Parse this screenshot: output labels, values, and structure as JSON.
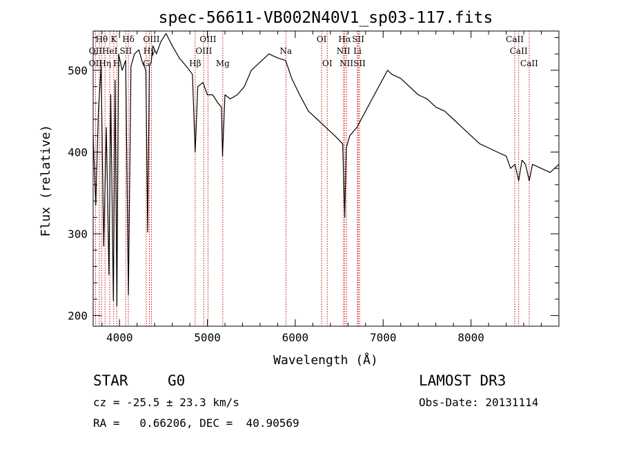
{
  "chart_data": {
    "type": "line",
    "title": "spec-56611-VB002N40V1_sp03-117.fits",
    "xlabel": "Wavelength (Å)",
    "ylabel": "Flux (relative)",
    "xlim": [
      3700,
      9000
    ],
    "ylim": [
      187,
      548
    ],
    "x_ticks": [
      4000,
      5000,
      6000,
      7000,
      8000
    ],
    "y_ticks": [
      200,
      300,
      400,
      500
    ],
    "series": [
      {
        "name": "spectrum",
        "x": [
          3700,
          3730,
          3760,
          3790,
          3820,
          3850,
          3880,
          3900,
          3930,
          3950,
          3970,
          3990,
          4030,
          4070,
          4101,
          4130,
          4170,
          4220,
          4260,
          4300,
          4320,
          4340,
          4360,
          4380,
          4420,
          4470,
          4530,
          4600,
          4680,
          4760,
          4830,
          4861,
          4890,
          4950,
          5000,
          5060,
          5120,
          5160,
          5172,
          5200,
          5260,
          5340,
          5420,
          5500,
          5600,
          5700,
          5800,
          5890,
          5960,
          6050,
          6150,
          6250,
          6350,
          6450,
          6540,
          6563,
          6580,
          6620,
          6700,
          6800,
          6900,
          7000,
          7050,
          7100,
          7200,
          7300,
          7400,
          7500,
          7600,
          7700,
          7800,
          7900,
          8000,
          8100,
          8200,
          8300,
          8400,
          8450,
          8500,
          8542,
          8580,
          8620,
          8662,
          8700,
          8800,
          8900,
          9000
        ],
        "y": [
          420,
          335,
          450,
          505,
          285,
          430,
          250,
          470,
          218,
          488,
          212,
          520,
          500,
          512,
          225,
          505,
          520,
          525,
          510,
          500,
          302,
          505,
          510,
          530,
          520,
          535,
          545,
          530,
          515,
          505,
          495,
          400,
          480,
          485,
          470,
          470,
          460,
          455,
          395,
          470,
          465,
          470,
          480,
          500,
          510,
          520,
          515,
          512,
          490,
          470,
          450,
          440,
          430,
          420,
          410,
          320,
          405,
          420,
          430,
          450,
          470,
          490,
          500,
          495,
          490,
          480,
          470,
          465,
          455,
          450,
          440,
          430,
          420,
          410,
          405,
          400,
          395,
          380,
          385,
          365,
          390,
          385,
          365,
          385,
          380,
          375,
          385
        ]
      }
    ],
    "line_labels": [
      {
        "name": "Hθ",
        "x": 3797,
        "row": 1
      },
      {
        "name": "K",
        "x": 3934,
        "row": 1
      },
      {
        "name": "Hδ",
        "x": 4101,
        "row": 1
      },
      {
        "name": "OIII",
        "x": 4363,
        "row": 1
      },
      {
        "name": "OIII",
        "x": 5007,
        "row": 1
      },
      {
        "name": "OI",
        "x": 6300,
        "row": 1
      },
      {
        "name": "Hα",
        "x": 6563,
        "row": 1
      },
      {
        "name": "SII",
        "x": 6716,
        "row": 1
      },
      {
        "name": "CaII",
        "x": 8498,
        "row": 1
      },
      {
        "name": "OII",
        "x": 3727,
        "row": 2
      },
      {
        "name": "HeI",
        "x": 3889,
        "row": 2
      },
      {
        "name": "SII",
        "x": 4072,
        "row": 2
      },
      {
        "name": "Hγ",
        "x": 4340,
        "row": 2
      },
      {
        "name": "OIII",
        "x": 4959,
        "row": 2
      },
      {
        "name": "Na",
        "x": 5893,
        "row": 2
      },
      {
        "name": "NII",
        "x": 6548,
        "row": 2
      },
      {
        "name": "Li",
        "x": 6708,
        "row": 2
      },
      {
        "name": "CaII",
        "x": 8542,
        "row": 2
      },
      {
        "name": "OII",
        "x": 3727,
        "row": 3
      },
      {
        "name": "Hη",
        "x": 3835,
        "row": 3
      },
      {
        "name": "H",
        "x": 3969,
        "row": 3
      },
      {
        "name": "G",
        "x": 4304,
        "row": 3
      },
      {
        "name": "Hβ",
        "x": 4861,
        "row": 3
      },
      {
        "name": "Mg",
        "x": 5175,
        "row": 3
      },
      {
        "name": "OI",
        "x": 6364,
        "row": 3
      },
      {
        "name": "NII",
        "x": 6583,
        "row": 3
      },
      {
        "name": "SII",
        "x": 6731,
        "row": 3
      },
      {
        "name": "CaII",
        "x": 8662,
        "row": 3
      }
    ],
    "line_marker_wavelengths": [
      3727,
      3770,
      3797,
      3835,
      3889,
      3934,
      3969,
      4072,
      4101,
      4304,
      4340,
      4363,
      4861,
      4959,
      5007,
      5175,
      5893,
      6300,
      6364,
      6548,
      6563,
      6583,
      6708,
      6716,
      6731,
      8498,
      8542,
      8662
    ],
    "colors": {
      "spectrum": "#000000",
      "markers": "#cc0000",
      "axes": "#000000"
    }
  },
  "info": {
    "object_class": "STAR",
    "subclass": "G0",
    "survey": "LAMOST DR3",
    "redshift": "cz = -25.5 ± 23.3 km/s",
    "obs_date": "Obs-Date: 20131114",
    "coords": "RA =   0.66206, DEC =  40.90569"
  }
}
